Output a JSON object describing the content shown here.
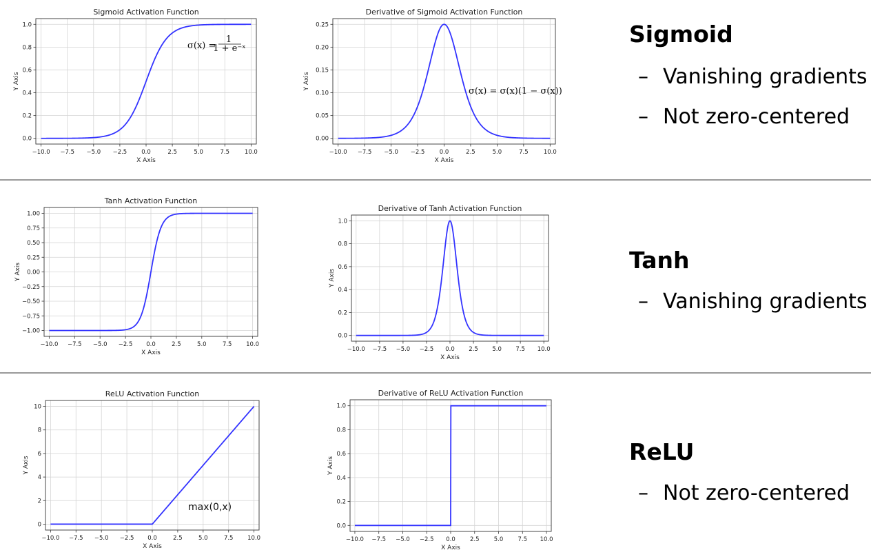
{
  "sections": [
    {
      "heading": "Sigmoid",
      "bullets": [
        "Vanishing gradients",
        "Not zero-centered"
      ]
    },
    {
      "heading": "Tanh",
      "bullets": [
        "Vanishing gradients"
      ]
    },
    {
      "heading": "ReLU",
      "bullets": [
        "Not zero-centered"
      ]
    }
  ],
  "bullet_marker": "–",
  "line_color": "#3333ff",
  "chart_data": [
    {
      "type": "line",
      "id": "sigmoid",
      "function": "sigmoid",
      "title": "Sigmoid Activation Function",
      "xlabel": "X Axis",
      "ylabel": "Y Axis",
      "xlim": [
        -10.5,
        10.5
      ],
      "ylim": [
        -0.05,
        1.05
      ],
      "xticks": [
        -10,
        -7.5,
        -5,
        -2.5,
        0,
        2.5,
        5,
        7.5,
        10
      ],
      "xtick_labels": [
        "−10.0",
        "−7.5",
        "−5.0",
        "−2.5",
        "0.0",
        "2.5",
        "5.0",
        "7.5",
        "10.0"
      ],
      "yticks": [
        0,
        0.2,
        0.4,
        0.6,
        0.8,
        1.0
      ],
      "ytick_labels": [
        "0.0",
        "0.2",
        "0.4",
        "0.6",
        "0.8",
        "1.0"
      ],
      "annotation": "σ(x) = 1 / (1 + e^−x)",
      "grid": true
    },
    {
      "type": "line",
      "id": "d_sigmoid",
      "function": "d_sigmoid",
      "title": "Derivative of Sigmoid Activation Function",
      "xlabel": "X Axis",
      "ylabel": "Y Axis",
      "xlim": [
        -10.5,
        10.5
      ],
      "ylim": [
        -0.0125,
        0.2625
      ],
      "xticks": [
        -10,
        -7.5,
        -5,
        -2.5,
        0,
        2.5,
        5,
        7.5,
        10
      ],
      "xtick_labels": [
        "−10.0",
        "−7.5",
        "−5.0",
        "−2.5",
        "0.0",
        "2.5",
        "5.0",
        "7.5",
        "10.0"
      ],
      "yticks": [
        0,
        0.05,
        0.1,
        0.15,
        0.2,
        0.25
      ],
      "ytick_labels": [
        "0.00",
        "0.05",
        "0.10",
        "0.15",
        "0.20",
        "0.25"
      ],
      "annotation": "σ(x) = σ(x)(1 − σ(x))",
      "grid": true
    },
    {
      "type": "line",
      "id": "tanh",
      "function": "tanh",
      "title": "Tanh Activation Function",
      "xlabel": "X Axis",
      "ylabel": "Y Axis",
      "xlim": [
        -10.5,
        10.5
      ],
      "ylim": [
        -1.1,
        1.1
      ],
      "xticks": [
        -10,
        -7.5,
        -5,
        -2.5,
        0,
        2.5,
        5,
        7.5,
        10
      ],
      "xtick_labels": [
        "−10.0",
        "−7.5",
        "−5.0",
        "−2.5",
        "0.0",
        "2.5",
        "5.0",
        "7.5",
        "10.0"
      ],
      "yticks": [
        -1,
        -0.75,
        -0.5,
        -0.25,
        0,
        0.25,
        0.5,
        0.75,
        1
      ],
      "ytick_labels": [
        "−1.00",
        "−0.75",
        "−0.50",
        "−0.25",
        "0.00",
        "0.25",
        "0.50",
        "0.75",
        "1.00"
      ],
      "grid": true
    },
    {
      "type": "line",
      "id": "d_tanh",
      "function": "d_tanh",
      "title": "Derivative of Tanh Activation Function",
      "xlabel": "X Axis",
      "ylabel": "Y Axis",
      "xlim": [
        -10.5,
        10.5
      ],
      "ylim": [
        -0.05,
        1.05
      ],
      "xticks": [
        -10,
        -7.5,
        -5,
        -2.5,
        0,
        2.5,
        5,
        7.5,
        10
      ],
      "xtick_labels": [
        "−10.0",
        "−7.5",
        "−5.0",
        "−2.5",
        "0.0",
        "2.5",
        "5.0",
        "7.5",
        "10.0"
      ],
      "yticks": [
        0,
        0.2,
        0.4,
        0.6,
        0.8,
        1.0
      ],
      "ytick_labels": [
        "0.0",
        "0.2",
        "0.4",
        "0.6",
        "0.8",
        "1.0"
      ],
      "grid": true
    },
    {
      "type": "line",
      "id": "relu",
      "function": "relu",
      "title": "ReLU Activation Function",
      "xlabel": "X Axis",
      "ylabel": "Y Axis",
      "xlim": [
        -10.5,
        10.5
      ],
      "ylim": [
        -0.5,
        10.5
      ],
      "xticks": [
        -10,
        -7.5,
        -5,
        -2.5,
        0,
        2.5,
        5,
        7.5,
        10
      ],
      "xtick_labels": [
        "−10.0",
        "−7.5",
        "−5.0",
        "−2.5",
        "0.0",
        "2.5",
        "5.0",
        "7.5",
        "10.0"
      ],
      "yticks": [
        0,
        2,
        4,
        6,
        8,
        10
      ],
      "ytick_labels": [
        "0",
        "2",
        "4",
        "6",
        "8",
        "10"
      ],
      "annotation": "max(0,x)",
      "grid": true
    },
    {
      "type": "line",
      "id": "d_relu",
      "function": "d_relu",
      "title": "Derivative of ReLU Activation Function",
      "xlabel": "X Axis",
      "ylabel": "Y Axis",
      "xlim": [
        -10.5,
        10.5
      ],
      "ylim": [
        -0.05,
        1.05
      ],
      "xticks": [
        -10,
        -7.5,
        -5,
        -2.5,
        0,
        2.5,
        5,
        7.5,
        10
      ],
      "xtick_labels": [
        "−10.0",
        "−7.5",
        "−5.0",
        "−2.5",
        "0.0",
        "2.5",
        "5.0",
        "7.5",
        "10.0"
      ],
      "yticks": [
        0,
        0.2,
        0.4,
        0.6,
        0.8,
        1.0
      ],
      "ytick_labels": [
        "0.0",
        "0.2",
        "0.4",
        "0.6",
        "0.8",
        "1.0"
      ],
      "grid": true
    }
  ]
}
